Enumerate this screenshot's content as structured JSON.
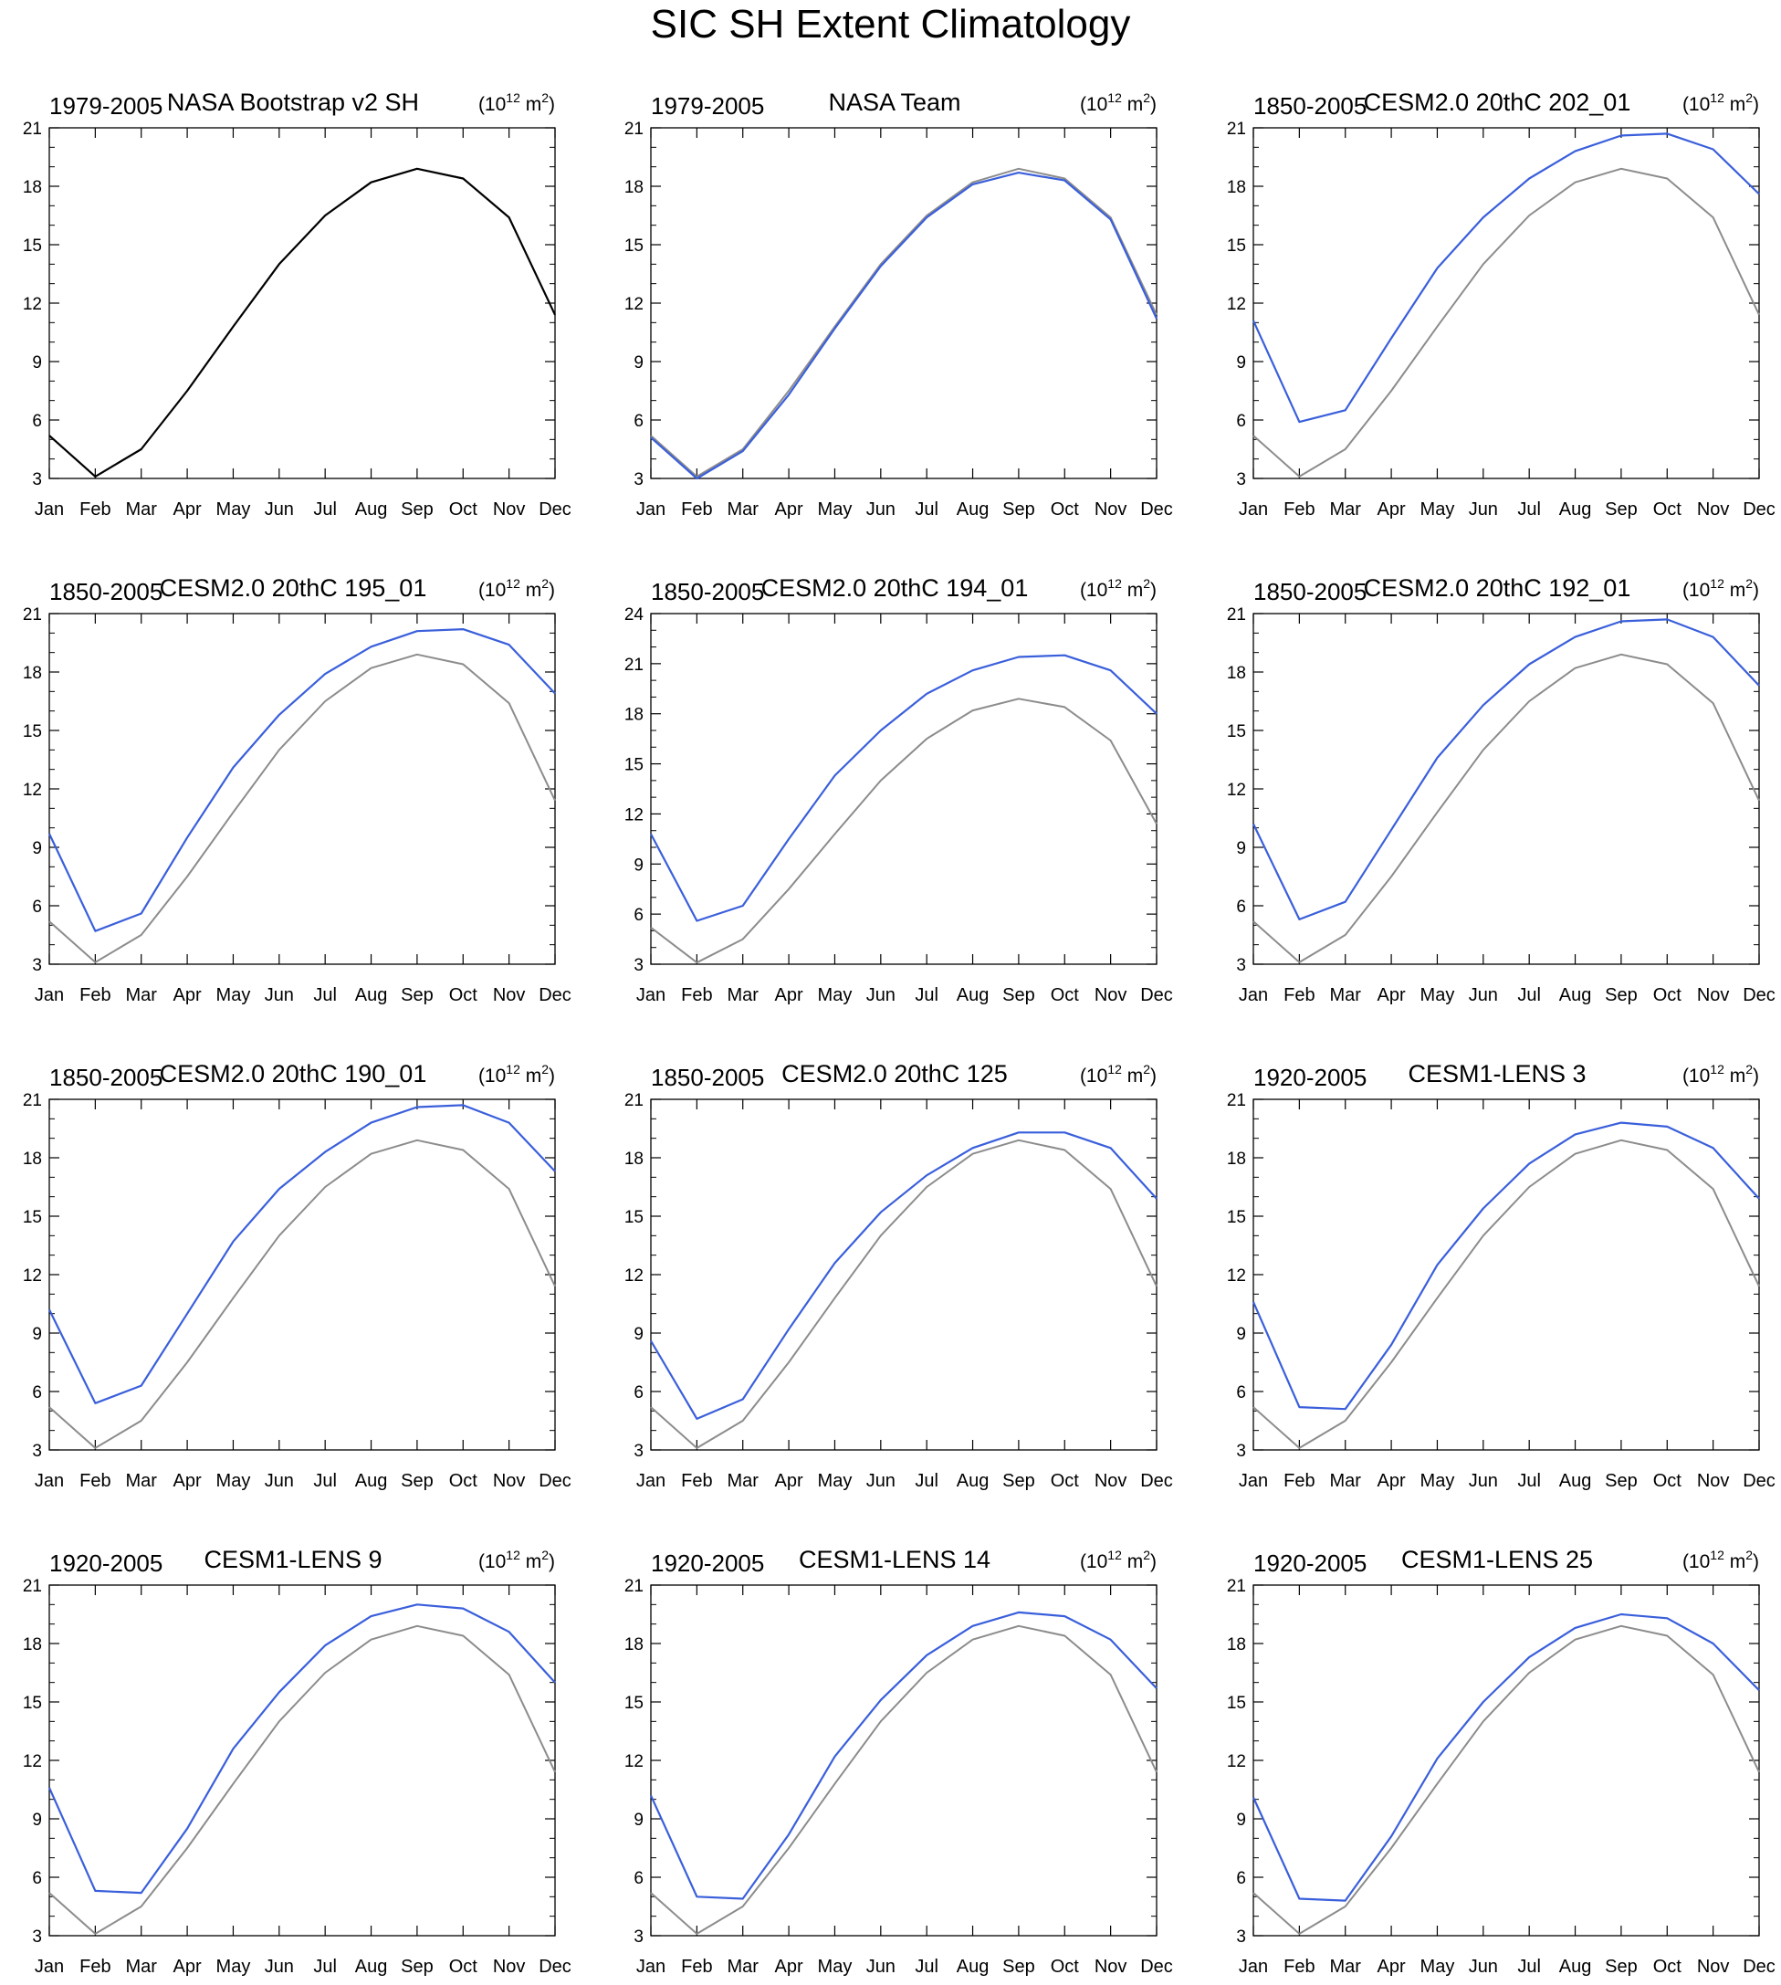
{
  "title": "SIC SH Extent Climatology",
  "colors": {
    "model": "#3a5fdb",
    "reference": "#8c8c8c",
    "single": "#000000",
    "axis": "#000000"
  },
  "months": [
    "Jan",
    "Feb",
    "Mar",
    "Apr",
    "May",
    "Jun",
    "Jul",
    "Aug",
    "Sep",
    "Oct",
    "Nov",
    "Dec"
  ],
  "chart_data": [
    {
      "type": "line",
      "left_label": "1979-2005",
      "center_label": "NASA Bootstrap v2 SH",
      "units_base": "(10",
      "units_exp": "12",
      "units_unit": " m",
      "units_sq": "2",
      "units_close": ")",
      "ylim": [
        3,
        21
      ],
      "yticks": [
        3,
        6,
        9,
        12,
        15,
        18,
        21
      ],
      "series": [
        {
          "role": "single",
          "values": [
            5.2,
            3.1,
            4.5,
            7.5,
            10.8,
            14.0,
            16.5,
            18.2,
            18.9,
            18.4,
            16.4,
            11.4
          ]
        }
      ]
    },
    {
      "type": "line",
      "left_label": "1979-2005",
      "center_label": "NASA Team",
      "units_base": "(10",
      "units_exp": "12",
      "units_unit": " m",
      "units_sq": "2",
      "units_close": ")",
      "ylim": [
        3,
        21
      ],
      "yticks": [
        3,
        6,
        9,
        12,
        15,
        18,
        21
      ],
      "series": [
        {
          "role": "reference",
          "values": [
            5.2,
            3.1,
            4.5,
            7.5,
            10.8,
            14.0,
            16.5,
            18.2,
            18.9,
            18.4,
            16.4,
            11.4
          ]
        },
        {
          "role": "model",
          "values": [
            5.1,
            3.0,
            4.4,
            7.3,
            10.7,
            13.9,
            16.4,
            18.1,
            18.7,
            18.3,
            16.3,
            11.2
          ]
        }
      ]
    },
    {
      "type": "line",
      "left_label": "1850-2005",
      "center_label": "CESM2.0 20thC 202_01",
      "units_base": "(10",
      "units_exp": "12",
      "units_unit": " m",
      "units_sq": "2",
      "units_close": ")",
      "ylim": [
        3,
        21
      ],
      "yticks": [
        3,
        6,
        9,
        12,
        15,
        18,
        21
      ],
      "series": [
        {
          "role": "reference",
          "values": [
            5.2,
            3.1,
            4.5,
            7.5,
            10.8,
            14.0,
            16.5,
            18.2,
            18.9,
            18.4,
            16.4,
            11.4
          ]
        },
        {
          "role": "model",
          "values": [
            11.1,
            5.9,
            6.5,
            10.2,
            13.8,
            16.4,
            18.4,
            19.8,
            20.6,
            20.7,
            19.9,
            17.6
          ]
        }
      ]
    },
    {
      "type": "line",
      "left_label": "1850-2005",
      "center_label": "CESM2.0 20thC 195_01",
      "units_base": "(10",
      "units_exp": "12",
      "units_unit": " m",
      "units_sq": "2",
      "units_close": ")",
      "ylim": [
        3,
        21
      ],
      "yticks": [
        3,
        6,
        9,
        12,
        15,
        18,
        21
      ],
      "series": [
        {
          "role": "reference",
          "values": [
            5.2,
            3.1,
            4.5,
            7.5,
            10.8,
            14.0,
            16.5,
            18.2,
            18.9,
            18.4,
            16.4,
            11.4
          ]
        },
        {
          "role": "model",
          "values": [
            9.7,
            4.7,
            5.6,
            9.5,
            13.1,
            15.8,
            17.9,
            19.3,
            20.1,
            20.2,
            19.4,
            16.9
          ]
        }
      ]
    },
    {
      "type": "line",
      "left_label": "1850-2005",
      "center_label": "CESM2.0 20thC 194_01",
      "units_base": "(10",
      "units_exp": "12",
      "units_unit": " m",
      "units_sq": "2",
      "units_close": ")",
      "ylim": [
        3,
        24
      ],
      "yticks": [
        3,
        6,
        9,
        12,
        15,
        18,
        21,
        24
      ],
      "series": [
        {
          "role": "reference",
          "values": [
            5.2,
            3.1,
            4.5,
            7.5,
            10.8,
            14.0,
            16.5,
            18.2,
            18.9,
            18.4,
            16.4,
            11.4
          ]
        },
        {
          "role": "model",
          "values": [
            10.8,
            5.6,
            6.5,
            10.5,
            14.3,
            17.0,
            19.2,
            20.6,
            21.4,
            21.5,
            20.6,
            18.0
          ]
        }
      ]
    },
    {
      "type": "line",
      "left_label": "1850-2005",
      "center_label": "CESM2.0 20thC 192_01",
      "units_base": "(10",
      "units_exp": "12",
      "units_unit": " m",
      "units_sq": "2",
      "units_close": ")",
      "ylim": [
        3,
        21
      ],
      "yticks": [
        3,
        6,
        9,
        12,
        15,
        18,
        21
      ],
      "series": [
        {
          "role": "reference",
          "values": [
            5.2,
            3.1,
            4.5,
            7.5,
            10.8,
            14.0,
            16.5,
            18.2,
            18.9,
            18.4,
            16.4,
            11.4
          ]
        },
        {
          "role": "model",
          "values": [
            10.2,
            5.3,
            6.2,
            9.9,
            13.6,
            16.3,
            18.4,
            19.8,
            20.6,
            20.7,
            19.8,
            17.3
          ]
        }
      ]
    },
    {
      "type": "line",
      "left_label": "1850-2005",
      "center_label": "CESM2.0 20thC 190_01",
      "units_base": "(10",
      "units_exp": "12",
      "units_unit": " m",
      "units_sq": "2",
      "units_close": ")",
      "ylim": [
        3,
        21
      ],
      "yticks": [
        3,
        6,
        9,
        12,
        15,
        18,
        21
      ],
      "series": [
        {
          "role": "reference",
          "values": [
            5.2,
            3.1,
            4.5,
            7.5,
            10.8,
            14.0,
            16.5,
            18.2,
            18.9,
            18.4,
            16.4,
            11.4
          ]
        },
        {
          "role": "model",
          "values": [
            10.2,
            5.4,
            6.3,
            10.0,
            13.7,
            16.4,
            18.3,
            19.8,
            20.6,
            20.7,
            19.8,
            17.3
          ]
        }
      ]
    },
    {
      "type": "line",
      "left_label": "1850-2005",
      "center_label": "CESM2.0 20thC 125",
      "units_base": "(10",
      "units_exp": "12",
      "units_unit": " m",
      "units_sq": "2",
      "units_close": ")",
      "ylim": [
        3,
        21
      ],
      "yticks": [
        3,
        6,
        9,
        12,
        15,
        18,
        21
      ],
      "series": [
        {
          "role": "reference",
          "values": [
            5.2,
            3.1,
            4.5,
            7.5,
            10.8,
            14.0,
            16.5,
            18.2,
            18.9,
            18.4,
            16.4,
            11.4
          ]
        },
        {
          "role": "model",
          "values": [
            8.6,
            4.6,
            5.6,
            9.2,
            12.6,
            15.2,
            17.1,
            18.5,
            19.3,
            19.3,
            18.5,
            15.9
          ]
        }
      ]
    },
    {
      "type": "line",
      "left_label": "1920-2005",
      "center_label": "CESM1-LENS 3",
      "units_base": "(10",
      "units_exp": "12",
      "units_unit": " m",
      "units_sq": "2",
      "units_close": ")",
      "ylim": [
        3,
        21
      ],
      "yticks": [
        3,
        6,
        9,
        12,
        15,
        18,
        21
      ],
      "series": [
        {
          "role": "reference",
          "values": [
            5.2,
            3.1,
            4.5,
            7.5,
            10.8,
            14.0,
            16.5,
            18.2,
            18.9,
            18.4,
            16.4,
            11.4
          ]
        },
        {
          "role": "model",
          "values": [
            10.6,
            5.2,
            5.1,
            8.4,
            12.5,
            15.4,
            17.7,
            19.2,
            19.8,
            19.6,
            18.5,
            15.9
          ]
        }
      ]
    },
    {
      "type": "line",
      "left_label": "1920-2005",
      "center_label": "CESM1-LENS 9",
      "units_base": "(10",
      "units_exp": "12",
      "units_unit": " m",
      "units_sq": "2",
      "units_close": ")",
      "ylim": [
        3,
        21
      ],
      "yticks": [
        3,
        6,
        9,
        12,
        15,
        18,
        21
      ],
      "series": [
        {
          "role": "reference",
          "values": [
            5.2,
            3.1,
            4.5,
            7.5,
            10.8,
            14.0,
            16.5,
            18.2,
            18.9,
            18.4,
            16.4,
            11.4
          ]
        },
        {
          "role": "model",
          "values": [
            10.6,
            5.3,
            5.2,
            8.5,
            12.6,
            15.5,
            17.9,
            19.4,
            20.0,
            19.8,
            18.6,
            16.0
          ]
        }
      ]
    },
    {
      "type": "line",
      "left_label": "1920-2005",
      "center_label": "CESM1-LENS 14",
      "units_base": "(10",
      "units_exp": "12",
      "units_unit": " m",
      "units_sq": "2",
      "units_close": ")",
      "ylim": [
        3,
        21
      ],
      "yticks": [
        3,
        6,
        9,
        12,
        15,
        18,
        21
      ],
      "series": [
        {
          "role": "reference",
          "values": [
            5.2,
            3.1,
            4.5,
            7.5,
            10.8,
            14.0,
            16.5,
            18.2,
            18.9,
            18.4,
            16.4,
            11.4
          ]
        },
        {
          "role": "model",
          "values": [
            10.2,
            5.0,
            4.9,
            8.2,
            12.2,
            15.1,
            17.4,
            18.9,
            19.6,
            19.4,
            18.2,
            15.7
          ]
        }
      ]
    },
    {
      "type": "line",
      "left_label": "1920-2005",
      "center_label": "CESM1-LENS 25",
      "units_base": "(10",
      "units_exp": "12",
      "units_unit": " m",
      "units_sq": "2",
      "units_close": ")",
      "ylim": [
        3,
        21
      ],
      "yticks": [
        3,
        6,
        9,
        12,
        15,
        18,
        21
      ],
      "series": [
        {
          "role": "reference",
          "values": [
            5.2,
            3.1,
            4.5,
            7.5,
            10.8,
            14.0,
            16.5,
            18.2,
            18.9,
            18.4,
            16.4,
            11.4
          ]
        },
        {
          "role": "model",
          "values": [
            10.1,
            4.9,
            4.8,
            8.1,
            12.1,
            15.0,
            17.3,
            18.8,
            19.5,
            19.3,
            18.0,
            15.6
          ]
        }
      ]
    }
  ]
}
